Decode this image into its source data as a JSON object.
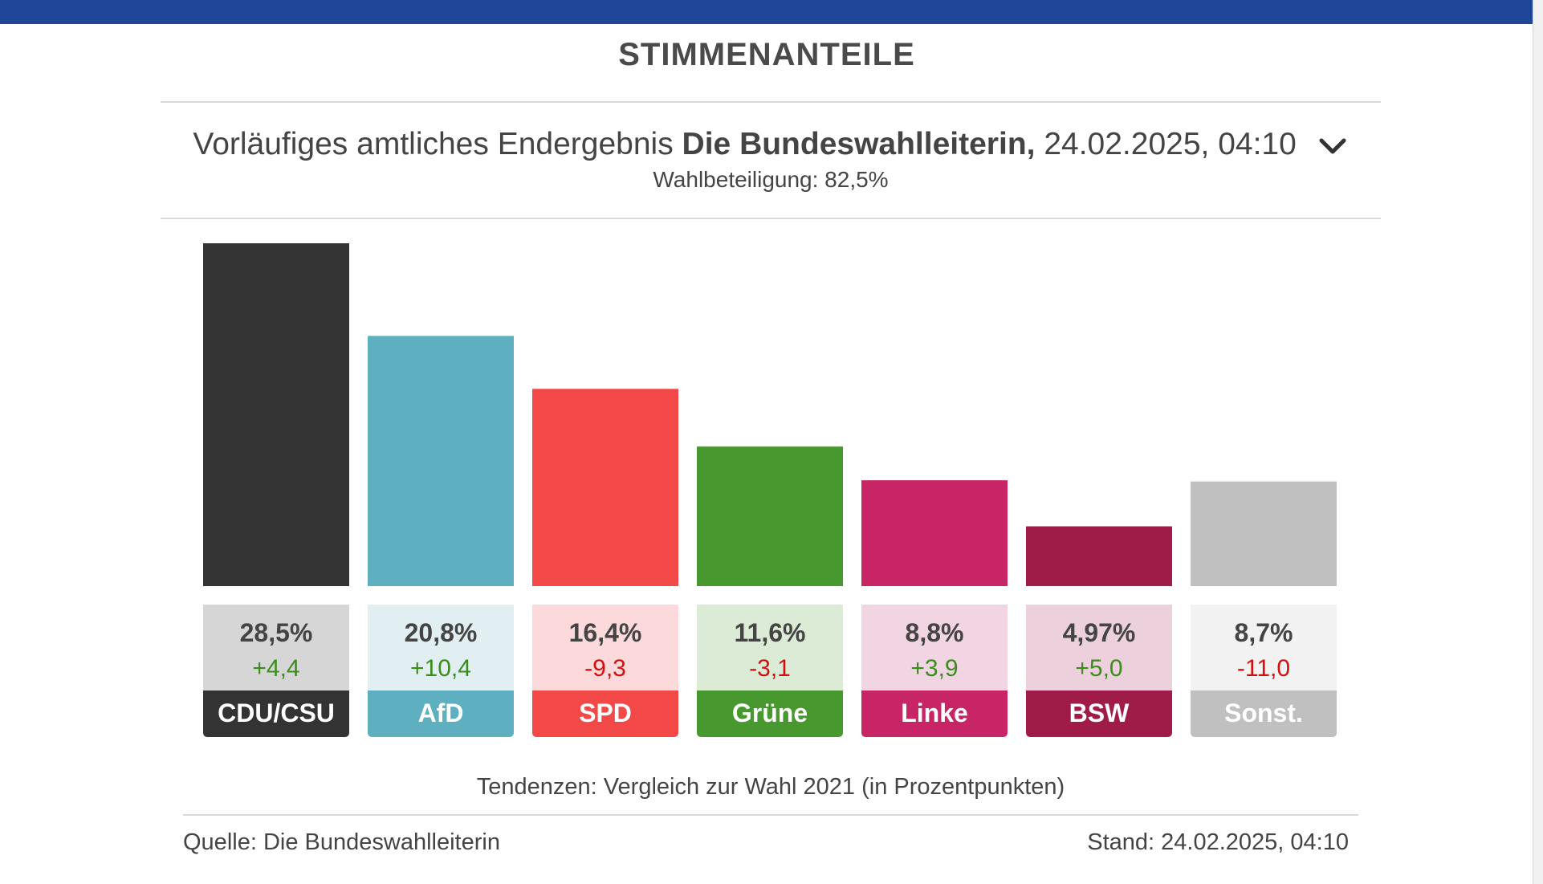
{
  "header": {
    "title": "STIMMENANTEILE",
    "result_prefix": "Vorläufiges amtliches Endergebnis",
    "result_source": "Die Bundeswahlleiterin,",
    "result_date": "24.02.2025, 04:10",
    "turnout": "Wahlbeteiligung: 82,5%"
  },
  "footer": {
    "note": "Tendenzen: Vergleich zur Wahl 2021 (in Prozentpunkten)",
    "source": "Quelle: Die Bundeswahlleiterin",
    "stand": "Stand: 24.02.2025, 04:10"
  },
  "colors": {
    "topbar": "#1f4699",
    "positive": "#3a8d1c",
    "negative": "#d21010"
  },
  "chart_data": {
    "type": "bar",
    "title": "STIMMENANTEILE",
    "xlabel": "",
    "ylabel": "",
    "ylim": [
      0,
      28.5
    ],
    "categories": [
      "CDU/CSU",
      "AfD",
      "SPD",
      "Grüne",
      "Linke",
      "BSW",
      "Sonst."
    ],
    "values": [
      28.5,
      20.8,
      16.4,
      11.6,
      8.8,
      4.97,
      8.7
    ],
    "value_labels": [
      "28,5%",
      "20,8%",
      "16,4%",
      "11,6%",
      "8,8%",
      "4,97%",
      "8,7%"
    ],
    "changes": [
      4.4,
      10.4,
      -9.3,
      -3.1,
      3.9,
      5.0,
      -11.0
    ],
    "change_labels": [
      "+4,4",
      "+10,4",
      "-9,3",
      "-3,1",
      "+3,9",
      "+5,0",
      "-11,0"
    ],
    "bar_colors": [
      "#333333",
      "#5eafc0",
      "#f24848",
      "#47982e",
      "#c82566",
      "#a01c48",
      "#c0c0c0"
    ],
    "tint_colors": [
      "#d6d6d6",
      "#e1eff2",
      "#fcd9da",
      "#dcebd6",
      "#f2d5e3",
      "#ecd1dc",
      "#f2f2f2"
    ]
  }
}
